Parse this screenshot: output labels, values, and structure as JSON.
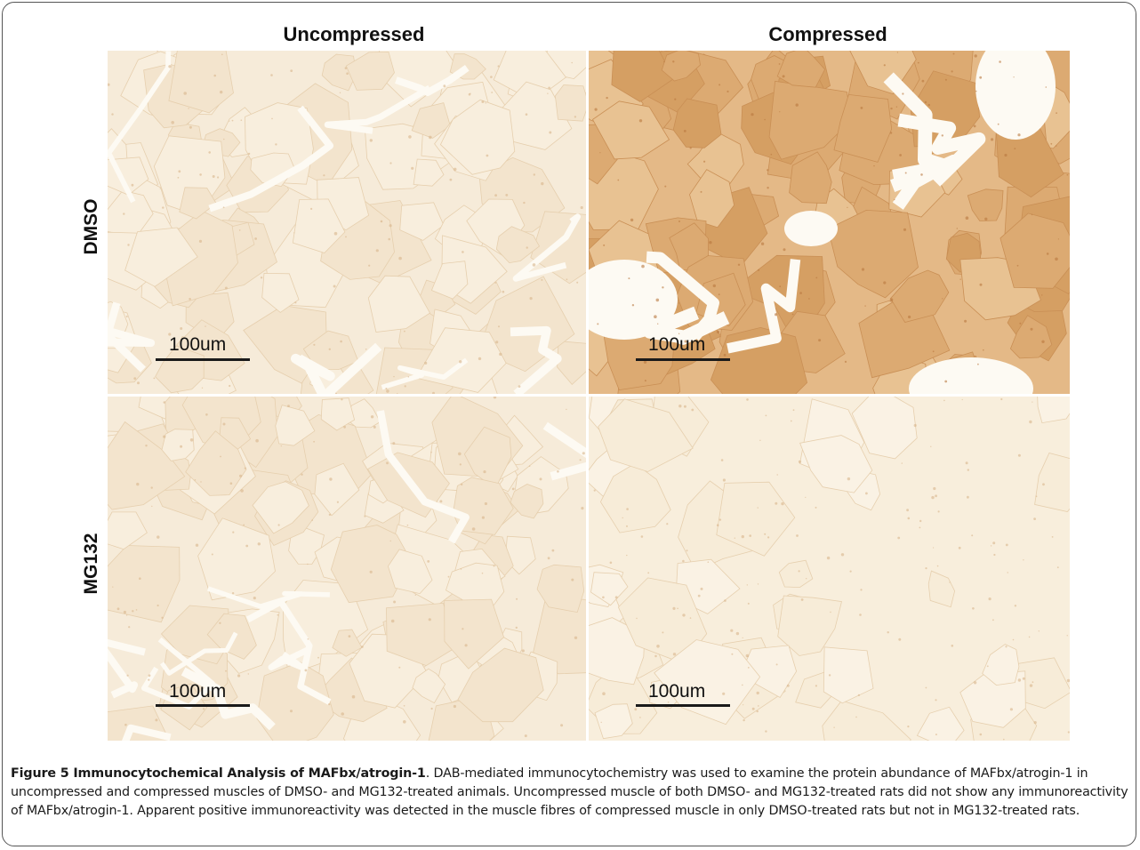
{
  "figure": {
    "columns": [
      "Uncompressed",
      "Compressed"
    ],
    "rows": [
      "DMSO",
      "MG132"
    ],
    "panels": [
      {
        "row": "DMSO",
        "column": "Uncompressed",
        "scale_label": "100um",
        "stain": "light"
      },
      {
        "row": "DMSO",
        "column": "Compressed",
        "scale_label": "100um",
        "stain": "dark"
      },
      {
        "row": "MG132",
        "column": "Uncompressed",
        "scale_label": "100um",
        "stain": "light"
      },
      {
        "row": "MG132",
        "column": "Compressed",
        "scale_label": "100um",
        "stain": "faint"
      }
    ],
    "colors": {
      "light_tissue": "#f6ebd9",
      "dark_tissue": "#e4b987",
      "faint_tissue": "#f8eedc",
      "gap": "#fdfaf3"
    }
  },
  "caption": {
    "label": "Figure 5 Immunocytochemical Analysis of MAFbx/atrogin-1",
    "text": ". DAB-mediated immunocytochemistry was used to examine the protein abundance of MAFbx/atrogin-1 in uncompressed and compressed muscles of DMSO- and MG132-treated animals. Uncompressed muscle of both DMSO- and MG132-treated rats did not show any immunoreactivity of MAFbx/atrogin-1. Apparent positive immunoreactivity was detected in the muscle fibres of compressed muscle in only DMSO-treated rats but not in MG132-treated rats."
  }
}
